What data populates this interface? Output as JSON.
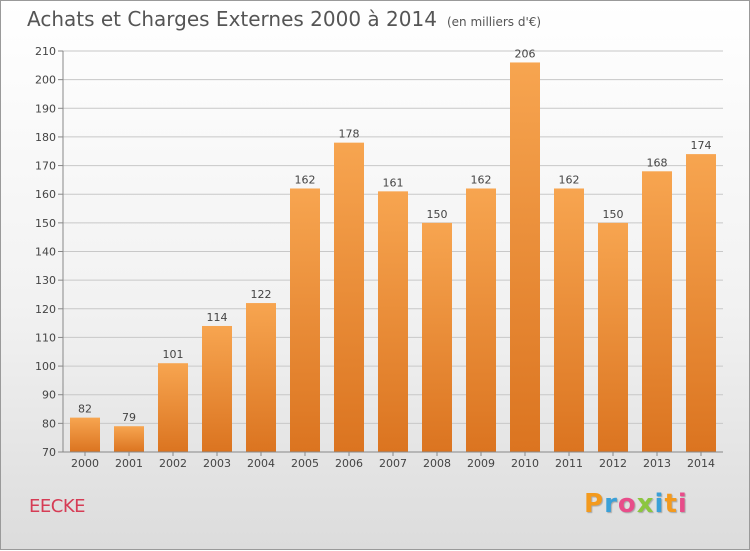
{
  "title": "Achats et Charges Externes 2000 à 2014",
  "subtitle": "(en milliers d'€)",
  "place": "EECKE",
  "logo": {
    "text": "Proxiti",
    "letter_colors": [
      "#f39a1e",
      "#3aa0d8",
      "#e84d8a",
      "#8cc63f",
      "#3aa0d8",
      "#f39a1e",
      "#e84d8a"
    ]
  },
  "colors": {
    "bar_light": "#f7a550",
    "bar_dark": "#db7420",
    "grid": "#c8c8c8",
    "axis_text": "#444444",
    "place": "#d63c55"
  },
  "chart_data": {
    "type": "bar",
    "categories": [
      "2000",
      "2001",
      "2002",
      "2003",
      "2004",
      "2005",
      "2006",
      "2007",
      "2008",
      "2009",
      "2010",
      "2011",
      "2012",
      "2013",
      "2014"
    ],
    "values": [
      82,
      79,
      101,
      114,
      122,
      162,
      178,
      161,
      150,
      162,
      206,
      162,
      150,
      168,
      174
    ],
    "title": "Achats et Charges Externes 2000 à 2014",
    "subtitle": "(en milliers d'€)",
    "xlabel": "",
    "ylabel": "",
    "ylim": [
      70,
      210
    ],
    "yticks": [
      70,
      80,
      90,
      100,
      110,
      120,
      130,
      140,
      150,
      160,
      170,
      180,
      190,
      200,
      210
    ],
    "grid": true,
    "legend": "none",
    "data_labels": true
  }
}
